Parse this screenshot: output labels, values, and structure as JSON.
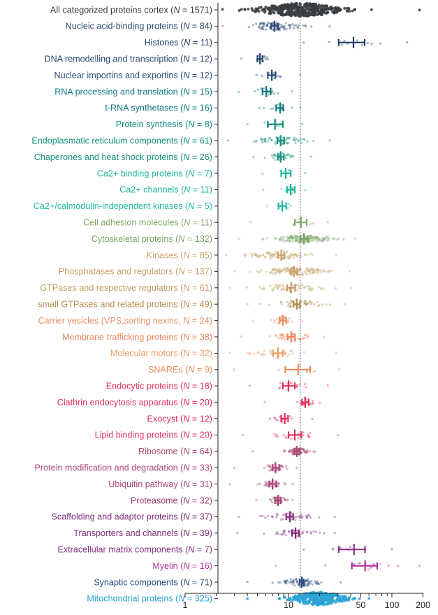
{
  "chart_data": {
    "type": "scatter",
    "subtype": "beeswarm with mean and 95% CI",
    "title": "",
    "xlabel": "",
    "ylabel": "",
    "x_scale": "log",
    "xlim": [
      1,
      200
    ],
    "x_ticks": [
      1,
      10,
      50,
      100,
      200
    ],
    "x_tick_labels": [
      "1",
      "10",
      "50",
      "100",
      "200"
    ],
    "reference_line": {
      "x": 13,
      "style": "dotted"
    },
    "grid": false,
    "legend": "none",
    "categories": [
      {
        "name": "All categorized proteins cortex",
        "n": 1571,
        "mean": 13.0,
        "ci": [
          12.5,
          13.6
        ],
        "range": [
          2.3,
          185
        ],
        "color": "#3a3d40"
      },
      {
        "name": "Nucleic acid-binding proteins",
        "n": 84,
        "mean": 7.3,
        "ci": [
          6.8,
          7.9
        ],
        "range": [
          2.3,
          25
        ],
        "color": "#2e4a72"
      },
      {
        "name": "Histones",
        "n": 11,
        "mean": 42.5,
        "ci": [
          30.6,
          54.5
        ],
        "range": [
          14,
          140
        ],
        "color": "#1f3d66"
      },
      {
        "name": "DNA remodelling and transcription",
        "n": 12,
        "mean": 5.3,
        "ci": [
          5.0,
          5.6
        ],
        "range": [
          3.5,
          6.3
        ],
        "color": "#27446e"
      },
      {
        "name": "Nuclear importins and exportins",
        "n": 12,
        "mean": 6.9,
        "ci": [
          6.3,
          7.5
        ],
        "range": [
          4.9,
          13
        ],
        "color": "#2a4e7a"
      },
      {
        "name": "RNA processing and translation",
        "n": 15,
        "mean": 6.1,
        "ci": [
          5.6,
          6.7
        ],
        "range": [
          3.3,
          10.8
        ],
        "color": "#127a82"
      },
      {
        "name": "t-RNA synthetases",
        "n": 16,
        "mean": 8.3,
        "ci": [
          7.6,
          8.9
        ],
        "range": [
          5.2,
          13
        ],
        "color": "#137a80"
      },
      {
        "name": "Protein synthesis",
        "n": 8,
        "mean": 7.4,
        "ci": [
          6.3,
          8.8
        ],
        "range": [
          4.0,
          13.5
        ],
        "color": "#0f8a7b"
      },
      {
        "name": "Endoplasmatic reticulum components",
        "n": 61,
        "mean": 8.4,
        "ci": [
          7.8,
          9.1
        ],
        "range": [
          2.6,
          25
        ],
        "color": "#17917c"
      },
      {
        "name": "Chaperones and heat shock proteins",
        "n": 26,
        "mean": 8.4,
        "ci": [
          7.9,
          9.0
        ],
        "range": [
          4.6,
          16.5
        ],
        "color": "#159178"
      },
      {
        "name": "Ca2+ binding proteins",
        "n": 7,
        "mean": 9.4,
        "ci": [
          8.5,
          10.5
        ],
        "range": [
          5.6,
          14.5
        ],
        "color": "#1cb59b"
      },
      {
        "name": "Ca2+ channels",
        "n": 11,
        "mean": 10.5,
        "ci": [
          9.7,
          11.5
        ],
        "range": [
          5.7,
          14.5
        ],
        "color": "#1bb39c"
      },
      {
        "name": "Ca2+/calmodulin-independent kinases",
        "n": 5,
        "mean": 8.7,
        "ci": [
          8.0,
          9.5
        ],
        "range": [
          6.2,
          10.5
        ],
        "color": "#22b8a0"
      },
      {
        "name": "Cell adhesion molecules",
        "n": 11,
        "mean": 13.2,
        "ci": [
          11.5,
          15.0
        ],
        "range": [
          4.3,
          24
        ],
        "color": "#84a96a"
      },
      {
        "name": "Cytoskeletal proteins",
        "n": 132,
        "mean": 14.1,
        "ci": [
          13.0,
          15.3
        ],
        "range": [
          3.3,
          44
        ],
        "color": "#79a263"
      },
      {
        "name": "Kinases",
        "n": 85,
        "mean": 8.5,
        "ci": [
          7.9,
          9.1
        ],
        "range": [
          2.5,
          29
        ],
        "color": "#c7a36a"
      },
      {
        "name": "Phosphatases and regulators",
        "n": 137,
        "mean": 11.3,
        "ci": [
          10.5,
          12.1
        ],
        "range": [
          3.0,
          39
        ],
        "color": "#c8a26b"
      },
      {
        "name": "GTPases and respective regulators",
        "n": 61,
        "mean": 10.6,
        "ci": [
          9.7,
          11.6
        ],
        "range": [
          2.7,
          40
        ],
        "color": "#c29d63"
      },
      {
        "name": "small GTPases and related proteins",
        "n": 49,
        "mean": 12.0,
        "ci": [
          11.2,
          12.9
        ],
        "range": [
          4.0,
          35
        ],
        "color": "#b08b4c"
      },
      {
        "name": "Carrier vesicles (VPS,sorting nexins",
        "n": 24,
        "mean": 8.8,
        "ci": [
          8.2,
          9.5
        ],
        "range": [
          4.5,
          13.5
        ],
        "color": "#e98c63"
      },
      {
        "name": "Membrane trafficking proteins",
        "n": 38,
        "mean": 10.6,
        "ci": [
          9.8,
          11.5
        ],
        "range": [
          3.5,
          22
        ],
        "color": "#e8845e"
      },
      {
        "name": "Molecular motors",
        "n": 32,
        "mean": 7.9,
        "ci": [
          7.1,
          8.8
        ],
        "range": [
          2.7,
          29
        ],
        "color": "#ea9a62"
      },
      {
        "name": "SNAREs",
        "n": 9,
        "mean": 12.4,
        "ci": [
          9.3,
          16.2
        ],
        "range": [
          3.0,
          31
        ],
        "color": "#ec8c59"
      },
      {
        "name": "Endocytic proteins",
        "n": 18,
        "mean": 10.0,
        "ci": [
          8.8,
          11.5
        ],
        "range": [
          4.2,
          24
        ],
        "color": "#e0345e"
      },
      {
        "name": "Clathrin endocytosis apparatus",
        "n": 20,
        "mean": 14.5,
        "ci": [
          13.5,
          15.7
        ],
        "range": [
          5.9,
          20
        ],
        "color": "#e12d5a"
      },
      {
        "name": "Exocyst",
        "n": 12,
        "mean": 9.2,
        "ci": [
          8.5,
          9.9
        ],
        "range": [
          6.6,
          17
        ],
        "color": "#e2285a"
      },
      {
        "name": "Lipid binding proteins",
        "n": 20,
        "mean": 11.5,
        "ci": [
          10.0,
          13.3
        ],
        "range": [
          3.6,
          30
        ],
        "color": "#e0345e"
      },
      {
        "name": "Ribosome",
        "n": 64,
        "mean": 12.0,
        "ci": [
          11.4,
          12.6
        ],
        "range": [
          4.5,
          18
        ],
        "color": "#a8476f"
      },
      {
        "name": "Protein modification and degradation",
        "n": 33,
        "mean": 7.5,
        "ci": [
          7.0,
          8.1
        ],
        "range": [
          3.0,
          12
        ],
        "color": "#a94878"
      },
      {
        "name": "Ubiquitin pathway",
        "n": 31,
        "mean": 7.0,
        "ci": [
          6.5,
          7.6
        ],
        "range": [
          2.7,
          11
        ],
        "color": "#a94879"
      },
      {
        "name": "Proteasome",
        "n": 32,
        "mean": 7.9,
        "ci": [
          7.4,
          8.4
        ],
        "range": [
          4.9,
          11
        ],
        "color": "#a34270"
      },
      {
        "name": "Scaffolding and adaptor proteins",
        "n": 37,
        "mean": 10.3,
        "ci": [
          9.5,
          11.1
        ],
        "range": [
          3.3,
          28
        ],
        "color": "#7d2e7a"
      },
      {
        "name": "Transporters and channels",
        "n": 39,
        "mean": 11.7,
        "ci": [
          10.8,
          12.6
        ],
        "range": [
          3.2,
          28
        ],
        "color": "#7e2f7d"
      },
      {
        "name": "Extracellular matrix components",
        "n": 7,
        "mean": 43.0,
        "ci": [
          30.6,
          55.0
        ],
        "range": [
          14,
          100
        ],
        "color": "#862f86"
      },
      {
        "name": "Myelin",
        "n": 16,
        "mean": 55.0,
        "ci": [
          41.0,
          72.0
        ],
        "range": [
          7.5,
          185
        ],
        "color": "#b0349a"
      },
      {
        "name": "Synaptic components",
        "n": 71,
        "mean": 13.4,
        "ci": [
          12.8,
          14.0
        ],
        "range": [
          4.0,
          32
        ],
        "color": "#28497f"
      },
      {
        "name": "Mitochondrial proteins",
        "n": 325,
        "mean": 19.2,
        "ci": [
          18.5,
          20.0
        ],
        "range": [
          4.0,
          60
        ],
        "color": "#2ba3d3"
      }
    ]
  }
}
